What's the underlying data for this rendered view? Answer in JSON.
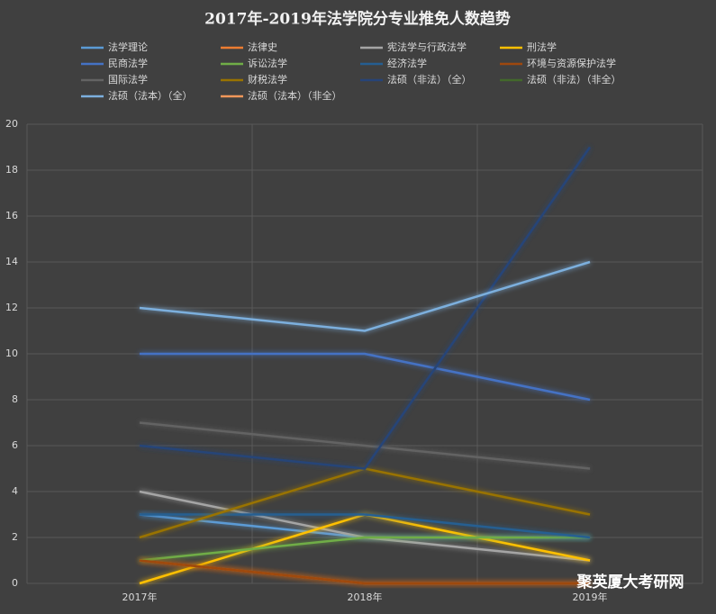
{
  "chart_data": {
    "type": "line",
    "title": "2017年-2019年法学院分专业推免人数趋势",
    "categories": [
      "2017年",
      "2018年",
      "2019年"
    ],
    "ylim": [
      0,
      20
    ],
    "yticks": [
      0,
      2,
      4,
      6,
      8,
      10,
      12,
      14,
      16,
      18,
      20
    ],
    "grid": true,
    "series": [
      {
        "name": "法学理论",
        "color": "#5b9bd5",
        "values": [
          3,
          2,
          2
        ]
      },
      {
        "name": "法律史",
        "color": "#ed7d31",
        "values": [
          1,
          0,
          0
        ]
      },
      {
        "name": "宪法学与行政法学",
        "color": "#a5a5a5",
        "values": [
          4,
          2,
          1
        ]
      },
      {
        "name": "刑法学",
        "color": "#ffc000",
        "values": [
          0,
          3,
          1
        ]
      },
      {
        "name": "民商法学",
        "color": "#4472c4",
        "values": [
          10,
          10,
          8
        ]
      },
      {
        "name": "诉讼法学",
        "color": "#70ad47",
        "values": [
          1,
          2,
          2
        ]
      },
      {
        "name": "经济法学",
        "color": "#255e91",
        "values": [
          3,
          3,
          2
        ]
      },
      {
        "name": "环境与资源保护法学",
        "color": "#9e480e",
        "values": [
          1,
          0,
          0
        ]
      },
      {
        "name": "国际法学",
        "color": "#636363",
        "values": [
          7,
          6,
          5
        ]
      },
      {
        "name": "财税法学",
        "color": "#997300",
        "values": [
          2,
          5,
          3
        ]
      },
      {
        "name": "法硕（非法）（全）",
        "color": "#264478",
        "values": [
          6,
          5,
          19
        ]
      },
      {
        "name": "法硕（非法）（非全）",
        "color": "#43682b",
        "values": [
          0,
          0,
          0
        ]
      },
      {
        "name": "法硕（法本）（全）",
        "color": "#7cafdd",
        "values": [
          12,
          11,
          14
        ]
      },
      {
        "name": "法硕（法本）（非全）",
        "color": "#f1975a",
        "values": [
          0,
          0,
          0
        ]
      }
    ]
  },
  "watermark": "聚英厦大考研网"
}
